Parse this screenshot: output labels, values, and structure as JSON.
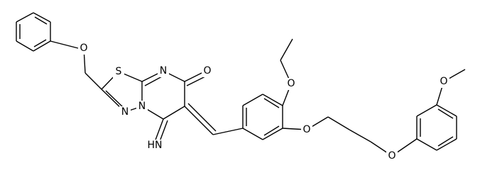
{
  "atoms": [
    "O",
    "S",
    "N",
    "N",
    "N",
    "O",
    "HN",
    "O",
    "O",
    "O",
    "O"
  ]
}
